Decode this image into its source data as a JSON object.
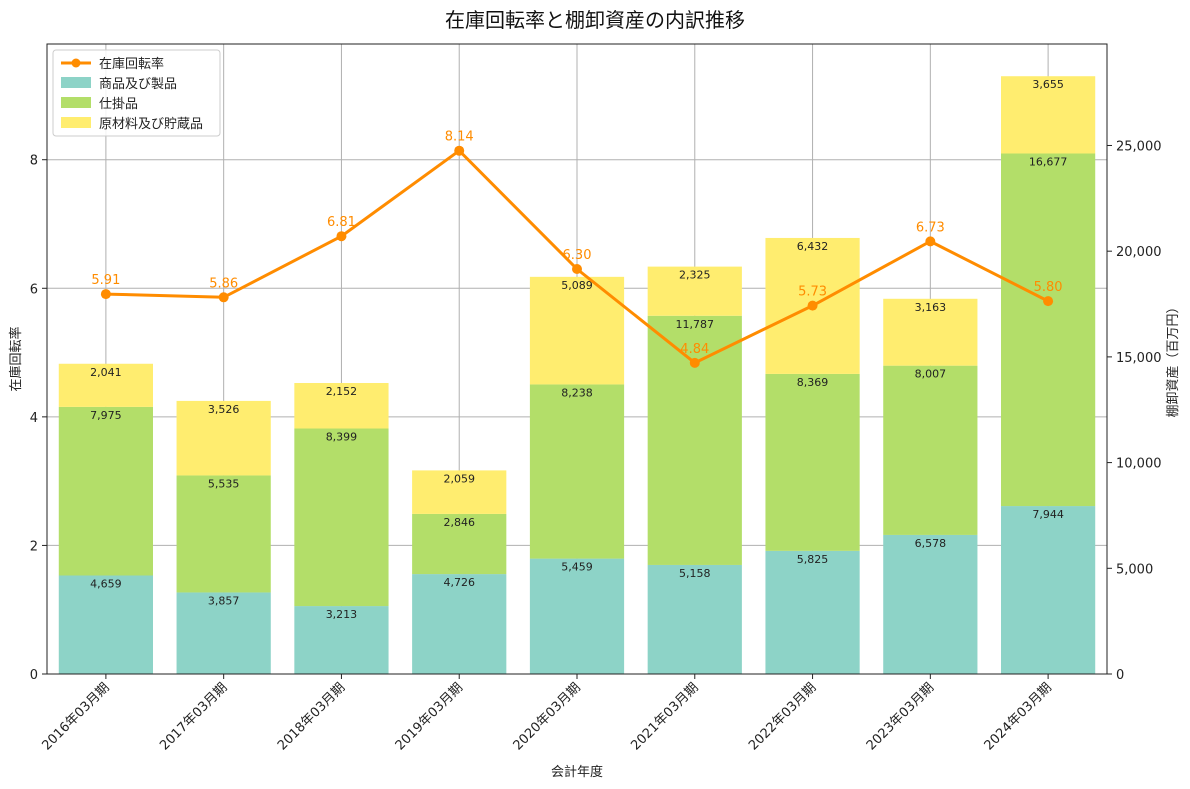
{
  "chart_data": {
    "type": "bar",
    "stacked": true,
    "title": "在庫回転率と棚卸資産の内訳推移",
    "xlabel": "会計年度",
    "ylabel_left": "在庫回転率",
    "ylabel_right": "棚卸資産（百万円）",
    "categories": [
      "2016年03月期",
      "2017年03月期",
      "2018年03月期",
      "2019年03月期",
      "2020年03月期",
      "2021年03月期",
      "2022年03月期",
      "2023年03月期",
      "2024年03月期"
    ],
    "series": [
      {
        "name": "商品及び製品",
        "color": "#8dd3c7",
        "values": [
          4659,
          3857,
          3213,
          4726,
          5459,
          5158,
          5825,
          6578,
          7944
        ],
        "labels": [
          "4,659",
          "3,857",
          "3,213",
          "4,726",
          "5,459",
          "5,158",
          "5,825",
          "6,578",
          "7,944"
        ]
      },
      {
        "name": "仕掛品",
        "color": "#b3de69",
        "values": [
          7975,
          5535,
          8399,
          2846,
          8238,
          11787,
          8369,
          8007,
          16677
        ],
        "labels": [
          "7,975",
          "5,535",
          "8,399",
          "2,846",
          "8,238",
          "11,787",
          "8,369",
          "8,007",
          "16,677"
        ]
      },
      {
        "name": "原材料及び貯蔵品",
        "color": "#ffed6f",
        "values": [
          2041,
          3526,
          2152,
          2059,
          5089,
          2325,
          6432,
          3163,
          3655
        ],
        "labels": [
          "2,041",
          "3,526",
          "2,152",
          "2,059",
          "5,089",
          "2,325",
          "6,432",
          "3,163",
          "3,655"
        ]
      }
    ],
    "line": {
      "name": "在庫回転率",
      "color": "#ff8c00",
      "values": [
        5.91,
        5.86,
        6.81,
        8.14,
        6.3,
        4.84,
        5.73,
        6.73,
        5.8
      ],
      "labels": [
        "5.91",
        "5.86",
        "6.81",
        "8.14",
        "6.30",
        "4.84",
        "5.73",
        "6.73",
        "5.80"
      ]
    },
    "ylim_left": [
      0,
      9.8
    ],
    "ylim_right": [
      0,
      29800
    ],
    "yticks_left": [
      "0",
      "2",
      "4",
      "6",
      "8"
    ],
    "yticks_right": [
      "0",
      "5,000",
      "10,000",
      "15,000",
      "20,000",
      "25,000"
    ],
    "grid": true,
    "legend_position": "top-left"
  }
}
